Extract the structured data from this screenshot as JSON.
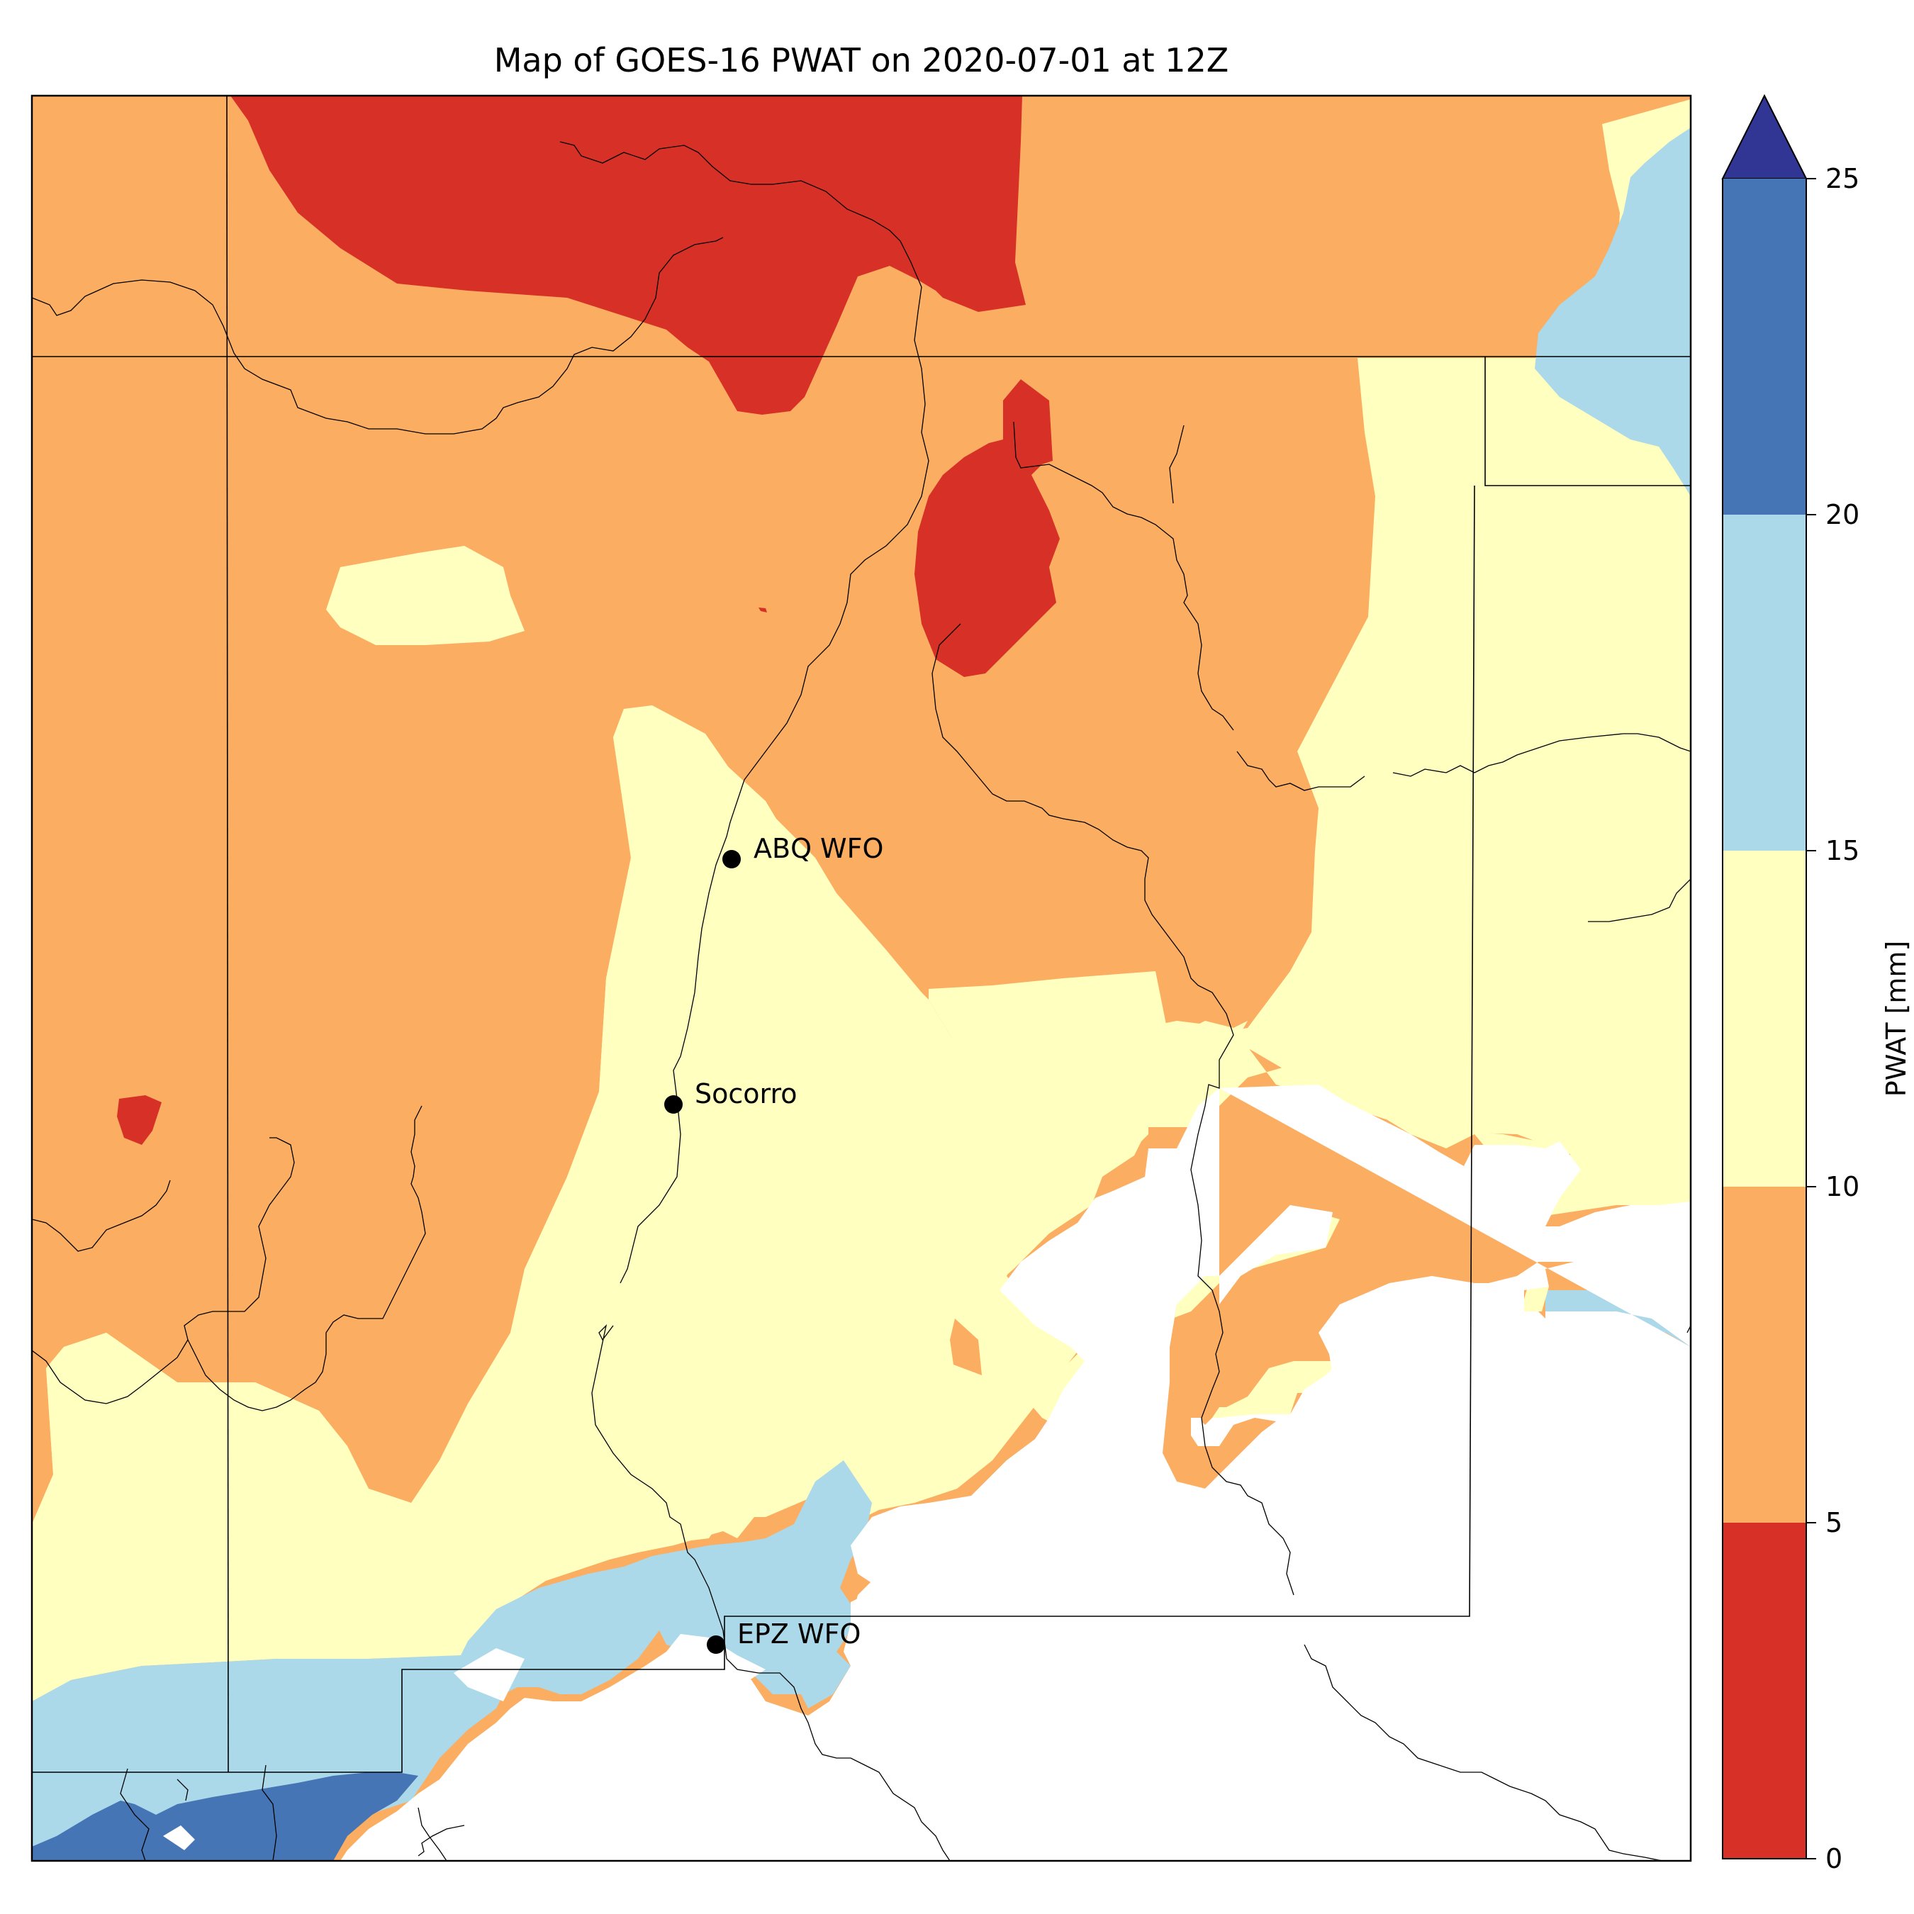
{
  "map": {
    "title": "Map of GOES-16 PWAT on 2020-07-01 at 12Z",
    "field": "PWAT",
    "satellite": "GOES-16",
    "valid_date": "2020-07-01",
    "valid_time": "12Z",
    "stations": [
      {
        "label": "ABQ WFO"
      },
      {
        "label": "Socorro"
      },
      {
        "label": "EPZ WFO"
      }
    ],
    "colors": {
      "band_0_5": "#d73027",
      "band_5_10": "#fbad62",
      "band_10_15": "#ffffbf",
      "band_15_20": "#abd9e9",
      "band_20_25": "#4575b4",
      "over_25": "#313695",
      "no_data": "#ffffff",
      "borders": "#000000"
    }
  },
  "colorbar": {
    "label": "PWAT [mm]",
    "ticks": [
      "0",
      "5",
      "10",
      "15",
      "20",
      "25"
    ],
    "extend": "max",
    "levels": [
      0,
      5,
      10,
      15,
      20,
      25
    ]
  }
}
